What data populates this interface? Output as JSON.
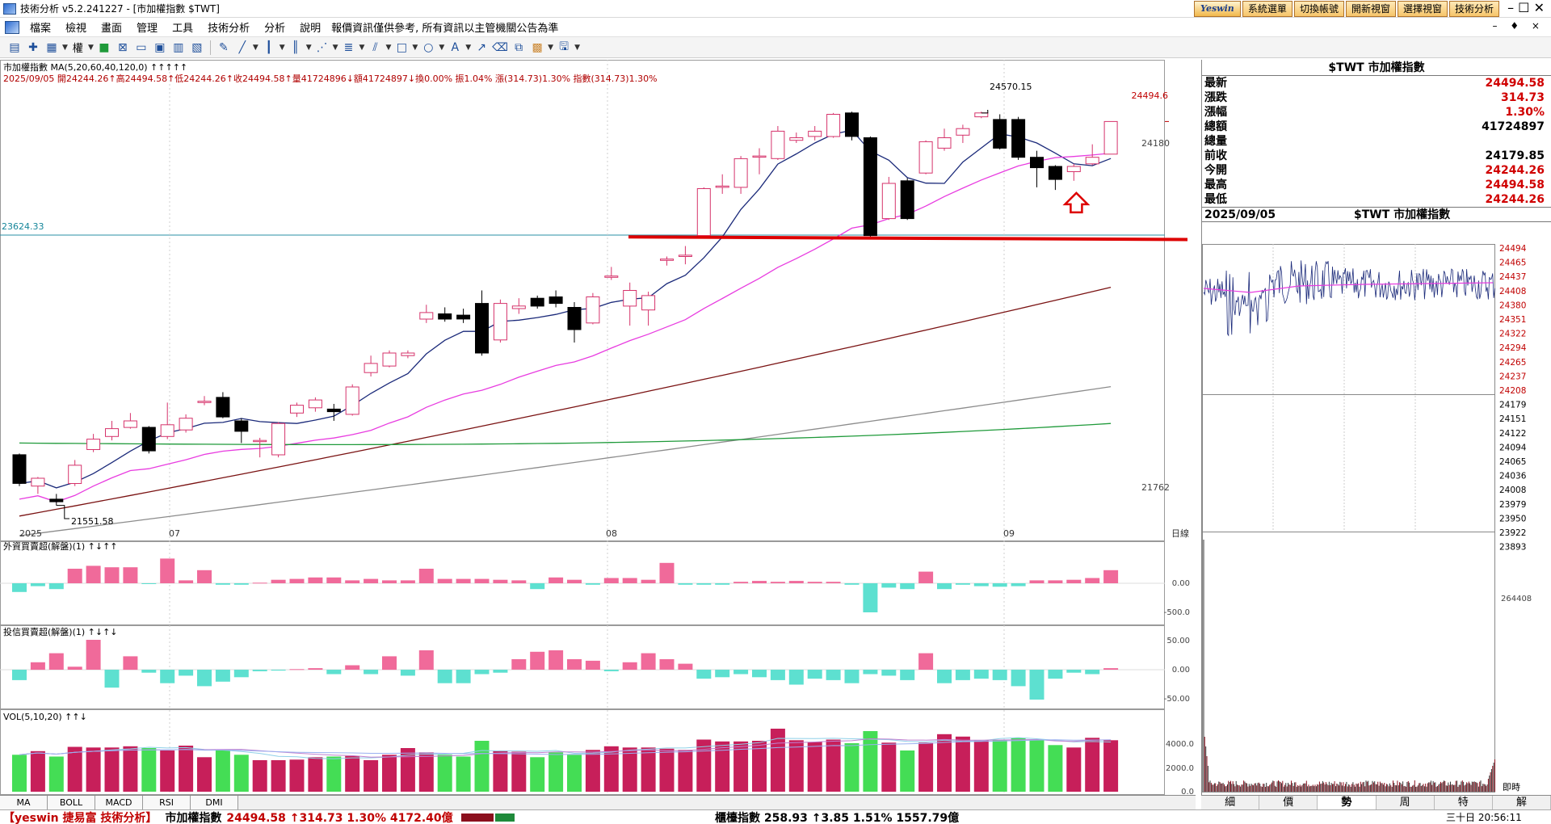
{
  "window": {
    "title": "技術分析 v5.2.241227 - [市加權指數 $TWT]",
    "controls": "–  ☐  ✕",
    "mdi_controls": "– ♦ ×"
  },
  "top_buttons": [
    "系統選單",
    "切換帳號",
    "開新視窗",
    "選擇視窗",
    "技術分析"
  ],
  "logo_text": "Yeswin",
  "menu": {
    "items": [
      "檔案",
      "檢視",
      "畫面",
      "管理",
      "工具",
      "技術分析",
      "分析",
      "說明"
    ],
    "notice": "報價資訊僅供參考, 所有資訊以主管機關公告為準"
  },
  "toolbar": {
    "weight_label": "權"
  },
  "chart": {
    "header_line1": "市加權指數 MA(5,20,60,40,120,0) ↑↑↑↑↑",
    "header_line2": "2025/09/05 開24244.26↑高24494.58↑低24244.26↑收24494.58↑量41724896↓額41724897↓換0.00% 振1.04% 漲(314.73)1.30% 指數(314.73)1.30%",
    "price_tag": "24494.6",
    "hline_value": "23624.33",
    "y_labels": [
      "24180",
      "21762"
    ],
    "annotation_high": "24570.15",
    "annotation_low": "21551.58",
    "x_labels": [
      "2025",
      "07",
      "08",
      "09"
    ],
    "period_label": "日線",
    "candles": [
      [
        0,
        21940,
        21720,
        21950,
        21700
      ],
      [
        1,
        21700,
        21760,
        21770,
        21640
      ],
      [
        2,
        21600,
        21580,
        21640,
        21551.58
      ],
      [
        3,
        21720,
        21860,
        21900,
        21700
      ],
      [
        4,
        21980,
        22060,
        22100,
        21960
      ],
      [
        5,
        22080,
        22140,
        22200,
        22050
      ],
      [
        6,
        22150,
        22200,
        22260,
        22140
      ],
      [
        7,
        22150,
        21970,
        22160,
        21950
      ],
      [
        8,
        22080,
        22170,
        22340,
        22060
      ],
      [
        9,
        22130,
        22220,
        22250,
        22110
      ],
      [
        10,
        22340,
        22350,
        22390,
        22320
      ],
      [
        11,
        22380,
        22230,
        22420,
        22220
      ],
      [
        12,
        22200,
        22120,
        22220,
        22030
      ],
      [
        13,
        22050,
        22050,
        22070,
        21920
      ],
      [
        14,
        21940,
        22180,
        22190,
        21920
      ],
      [
        15,
        22260,
        22320,
        22340,
        22230
      ],
      [
        16,
        22300,
        22360,
        22380,
        22270
      ],
      [
        17,
        22290,
        22270,
        22330,
        22200
      ],
      [
        18,
        22250,
        22460,
        22480,
        22240
      ],
      [
        19,
        22570,
        22640,
        22700,
        22540
      ],
      [
        20,
        22620,
        22720,
        22740,
        22610
      ],
      [
        21,
        22700,
        22720,
        22740,
        22680
      ],
      [
        22,
        22980,
        23030,
        23090,
        22950
      ],
      [
        23,
        23020,
        22980,
        23070,
        22960
      ],
      [
        24,
        23010,
        22980,
        23060,
        22950
      ],
      [
        25,
        23100,
        22720,
        23200,
        22700
      ],
      [
        26,
        22820,
        23100,
        23130,
        22800
      ],
      [
        27,
        23060,
        23080,
        23140,
        23020
      ],
      [
        28,
        23140,
        23080,
        23160,
        23060
      ],
      [
        29,
        23150,
        23100,
        23200,
        23070
      ],
      [
        30,
        23070,
        22900,
        23110,
        22800
      ],
      [
        31,
        22950,
        23150,
        23180,
        22940
      ],
      [
        32,
        23300,
        23310,
        23380,
        23280
      ],
      [
        33,
        23080,
        23200,
        23260,
        22930
      ],
      [
        34,
        23050,
        23160,
        23190,
        22930
      ],
      [
        35,
        23430,
        23440,
        23460,
        23390
      ],
      [
        36,
        23460,
        23470,
        23540,
        23400
      ],
      [
        37,
        23620,
        23980,
        23990,
        23600
      ],
      [
        38,
        23990,
        24000,
        24090,
        23940
      ],
      [
        39,
        23990,
        24210,
        24230,
        23940
      ],
      [
        40,
        24230,
        24230,
        24290,
        24090
      ],
      [
        41,
        24210,
        24420,
        24460,
        24200
      ],
      [
        42,
        24350,
        24370,
        24410,
        24330
      ],
      [
        43,
        24380,
        24420,
        24460,
        24350
      ],
      [
        44,
        24380,
        24550,
        24560,
        24370
      ],
      [
        45,
        24560,
        24380,
        24570.15,
        24350
      ],
      [
        46,
        24370,
        23620,
        24380,
        23600
      ],
      [
        47,
        23750,
        24020,
        24070,
        23740
      ],
      [
        48,
        24040,
        23750,
        24060,
        23740
      ],
      [
        49,
        24100,
        24340,
        24350,
        24090
      ],
      [
        50,
        24290,
        24370,
        24440,
        24270
      ],
      [
        51,
        24390,
        24440,
        24470,
        24330
      ],
      [
        52,
        24530,
        24560,
        24570,
        24520
      ],
      [
        53,
        24510,
        24290,
        24550,
        24280
      ],
      [
        54,
        24510,
        24220,
        24530,
        24200
      ],
      [
        55,
        24220,
        24140,
        24270,
        23990
      ],
      [
        56,
        24150,
        24050,
        24160,
        23970
      ],
      [
        57,
        24110,
        24150,
        24170,
        24040
      ],
      [
        58,
        24170,
        24220,
        24320,
        24160
      ],
      [
        59,
        24244.26,
        24494.58,
        24494.58,
        24244.26
      ]
    ],
    "foreign": {
      "title": "外資買賣超(解盤)(1) ↑↓↑↑",
      "y_labels": [
        "0.00",
        "-500.0"
      ],
      "values": [
        -0.3,
        -0.1,
        -0.2,
        0.5,
        0.6,
        0.55,
        0.55,
        -0.02,
        0.85,
        0.1,
        0.45,
        -0.05,
        -0.05,
        0.02,
        0.12,
        0.15,
        0.2,
        0.2,
        0.1,
        0.15,
        0.1,
        0.1,
        0.5,
        0.15,
        0.15,
        0.15,
        0.12,
        0.1,
        -0.2,
        0.2,
        0.12,
        -0.05,
        0.18,
        0.18,
        0.12,
        0.7,
        -0.05,
        -0.05,
        -0.05,
        0.05,
        0.08,
        0.05,
        0.08,
        0.05,
        0.05,
        -0.05,
        -1.0,
        -0.15,
        -0.2,
        0.4,
        -0.2,
        -0.05,
        -0.1,
        -0.12,
        -0.1,
        0.1,
        0.1,
        0.12,
        0.18,
        0.45
      ]
    },
    "trust": {
      "title": "投信買賣超(解盤)(1) ↑↓↑↓",
      "y_labels": [
        "50.00",
        "0.00",
        "-50.00"
      ],
      "values": [
        -0.35,
        0.25,
        0.55,
        0.1,
        1.0,
        -0.6,
        0.45,
        -0.1,
        -0.45,
        -0.2,
        -0.55,
        -0.4,
        -0.25,
        -0.05,
        -0.03,
        0.02,
        0.05,
        -0.15,
        0.15,
        -0.15,
        0.45,
        -0.2,
        0.65,
        -0.45,
        -0.45,
        -0.15,
        -0.1,
        0.35,
        0.6,
        0.65,
        0.35,
        0.3,
        -0.05,
        0.25,
        0.55,
        0.35,
        0.2,
        -0.3,
        -0.25,
        -0.15,
        -0.25,
        -0.35,
        -0.5,
        -0.3,
        -0.35,
        -0.45,
        -0.15,
        -0.2,
        -0.35,
        0.55,
        -0.45,
        -0.35,
        -0.3,
        -0.35,
        -0.55,
        -1.0,
        -0.3,
        -0.1,
        -0.15,
        0.05
      ]
    },
    "volume": {
      "title": "VOL(5,10,20) ↑↑↓",
      "y_labels": [
        "4000.0",
        "2000.0",
        "0.0"
      ],
      "values": [
        3050,
        3350,
        2900,
        3700,
        3650,
        3650,
        3750,
        3600,
        3400,
        3800,
        2850,
        3500,
        3050,
        2600,
        2600,
        2650,
        2850,
        2900,
        2950,
        2600,
        3050,
        3600,
        3250,
        3050,
        2900,
        4200,
        3400,
        3300,
        2850,
        3250,
        3050,
        3450,
        3750,
        3650,
        3650,
        3550,
        3450,
        4300,
        4150,
        4150,
        4200,
        5200,
        4250,
        4100,
        4300,
        4000,
        5000,
        4050,
        3400,
        4050,
        4750,
        4550,
        4250,
        4300,
        4450,
        4300,
        3850,
        3650,
        4450,
        4250
      ]
    }
  },
  "bottom_tabs": [
    "MA",
    "BOLL",
    "MACD",
    "RSI",
    "DMI"
  ],
  "quote": {
    "title": "$TWT 市加權指數",
    "rows": [
      {
        "label": "最新",
        "value": "24494.58",
        "red": true
      },
      {
        "label": "漲跌",
        "value": "314.73",
        "red": true
      },
      {
        "label": "漲幅",
        "value": "1.30%",
        "red": true
      },
      {
        "label": "總額",
        "value": "41724897",
        "red": false
      },
      {
        "label": "總量",
        "value": "",
        "red": false
      },
      {
        "label": "前收",
        "value": "24179.85",
        "red": false
      },
      {
        "label": "今開",
        "value": "24244.26",
        "red": true
      },
      {
        "label": "最高",
        "value": "24494.58",
        "red": true
      },
      {
        "label": "最低",
        "value": "24244.26",
        "red": true
      }
    ]
  },
  "mini": {
    "date": "2025/09/05",
    "name": "$TWT 市加權指數",
    "price_labels": [
      "24494",
      "24465",
      "24437",
      "24408",
      "24380",
      "24351",
      "24322",
      "24294",
      "24265",
      "24237",
      "24208",
      "24179",
      "24151",
      "24122",
      "24094",
      "24065",
      "24036",
      "24008",
      "23979",
      "23950",
      "23922",
      "23893"
    ],
    "vol_top_label": "264408",
    "realtime_label": "即時"
  },
  "right_tabs": [
    "細",
    "價",
    "勢",
    "周",
    "特",
    "解"
  ],
  "status": {
    "left_name": "【yeswin 捷易富 技術分析】",
    "left_name_index": "市加權指數",
    "left_quote": "24494.58 ↑314.73 1.30% 4172.40億",
    "right_quote": "櫃檯指數 258.93 ↑3.85 1.51% 1557.79億",
    "time": "三十日 20:56:11"
  },
  "colors": {
    "up": "#d6336b",
    "down": "#000000",
    "ma5": "#1b2a7a",
    "ma20": "#e83ce0",
    "ma60": "#7a1212",
    "ma120": "#8c8c8c",
    "ma240": "#1f9a3a",
    "foreign_pos": "#f06a9a",
    "foreign_neg": "#5de0d0",
    "vol_up": "#c71f5a",
    "vol_down": "#44dd55",
    "support_line": "#dd0000"
  }
}
